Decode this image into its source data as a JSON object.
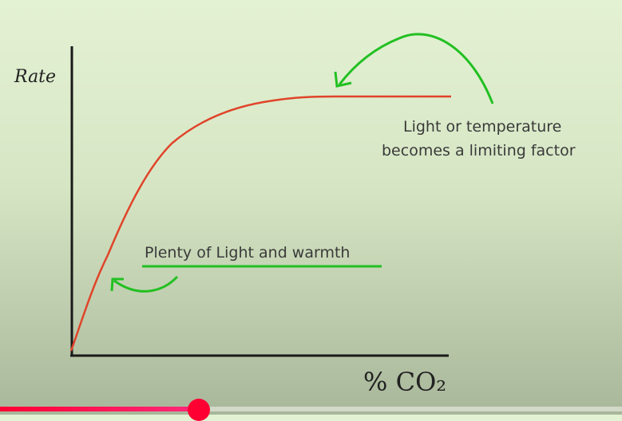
{
  "chart_data": {
    "type": "line",
    "title": "",
    "xlabel": "% CO₂",
    "ylabel": "Rate",
    "grid": false,
    "series": [
      {
        "shape": "rises steeply then plateaus",
        "color": "#e0442a"
      }
    ],
    "annotations": [
      {
        "text": "Plenty of Light and warmth",
        "underline_color": "#22c022"
      },
      {
        "text_line1": "Light or temperature",
        "text_line2": "becomes a limiting factor",
        "arrow_color": "#22c022"
      }
    ]
  },
  "player": {
    "progress_percent": 32,
    "accent": "#ff0033"
  }
}
